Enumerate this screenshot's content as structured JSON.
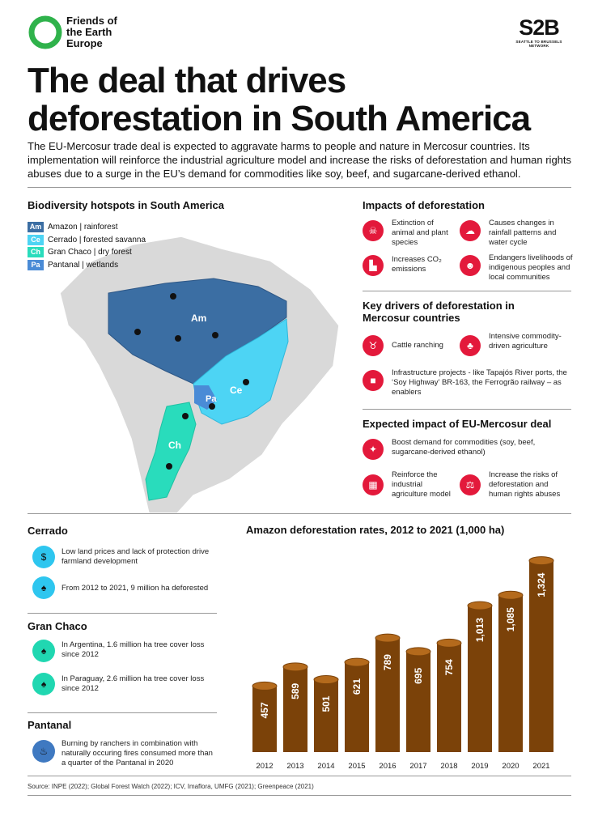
{
  "logos": {
    "foe_line1": "Friends of",
    "foe_line2": "the Earth",
    "foe_line3": "Europe",
    "s2b_mark": "S2B",
    "s2b_sub": "SEATTLE TO BRUSSELS NETWORK"
  },
  "title": {
    "line1": "The deal that drives",
    "line2": "deforestation in South America"
  },
  "intro": "The EU-Mercosur trade deal is expected to aggravate harms to people and nature in Mercosur countries. Its implementation will reinforce the industrial agriculture model and increase the risks of deforestation and human rights abuses due to a surge in the EU’s demand for commodities like soy, beef, and sugarcane-derived ethanol.",
  "map_section": {
    "title": "Biodiversity hotspots in South America",
    "legend": [
      {
        "code": "Am",
        "label": "Amazon | rainforest",
        "color": "#3b6ea3"
      },
      {
        "code": "Ce",
        "label": "Cerrado | forested savanna",
        "color": "#4dd4f4"
      },
      {
        "code": "Ch",
        "label": "Gran Chaco | dry forest",
        "color": "#29dcbc"
      },
      {
        "code": "Pa",
        "label": "Pantanal | wetlands",
        "color": "#4a8bd6"
      }
    ],
    "region_labels": {
      "am": "Am",
      "ce": "Ce",
      "pa": "Pa",
      "ch": "Ch"
    }
  },
  "impacts": {
    "title": "Impacts of deforestation",
    "items": [
      {
        "icon": "skull-icon",
        "glyph": "☠",
        "label": "Extinction of animal and plant species"
      },
      {
        "icon": "rain-cloud-icon",
        "glyph": "☁",
        "label": "Causes changes in rainfall patterns and water cycle"
      },
      {
        "icon": "factory-icon",
        "glyph": "▙",
        "label": "Increases CO₂ emissions"
      },
      {
        "icon": "people-icon",
        "glyph": "☻",
        "label": "Endangers livelihoods of indigenous peoples and local communities"
      }
    ]
  },
  "drivers": {
    "title": "Key drivers of deforestation in Mercosur countries",
    "items": [
      {
        "icon": "cow-icon",
        "glyph": "♉",
        "label": "Cattle ranching"
      },
      {
        "icon": "crops-icon",
        "glyph": "♣",
        "label": "Intensive commodity-driven agriculture"
      },
      {
        "icon": "truck-icon",
        "glyph": "■",
        "label": "Infrastructure projects - like Tapajós River ports, the ‘Soy Highway’ BR-163, the Ferrogrão railway – as enablers"
      }
    ]
  },
  "expected": {
    "title": "Expected impact of  EU-Mercosur deal",
    "items": [
      {
        "icon": "commodities-icon",
        "glyph": "✦",
        "label": "Boost demand for commodities (soy, beef, sugarcane-derived ethanol)"
      },
      {
        "icon": "industry-icon",
        "glyph": "▦",
        "label": "Reinforce the industrial agriculture model"
      },
      {
        "icon": "scales-icon",
        "glyph": "⚖",
        "label": "Increase the risks of deforestation and human rights abuses"
      }
    ]
  },
  "cerrado": {
    "title": "Cerrado",
    "items": [
      {
        "icon": "price-down-icon",
        "glyph": "$",
        "label": "Low land prices and lack of protection drive farmland development"
      },
      {
        "icon": "stump-icon",
        "glyph": "♠",
        "label": "From 2012 to 2021, 9 million ha deforested"
      }
    ]
  },
  "chaco": {
    "title": "Gran Chaco",
    "items": [
      {
        "icon": "stump-icon",
        "glyph": "♠",
        "label": "In Argentina, 1.6 million ha tree cover loss since 2012"
      },
      {
        "icon": "stump-icon",
        "glyph": "♠",
        "label": "In Paraguay, 2.6 million ha tree cover loss since 2012"
      }
    ]
  },
  "pantanal": {
    "title": "Pantanal",
    "items": [
      {
        "icon": "fire-tree-icon",
        "glyph": "♨",
        "label": "Burning by ranchers in combination with naturally occuring fires consumed more than a quarter of the Pantanal in 2020"
      }
    ]
  },
  "chart_data": {
    "type": "bar",
    "title": "Amazon deforestation rates, 2012 to 2021 (1,000 ha)",
    "categories": [
      "2012",
      "2013",
      "2014",
      "2015",
      "2016",
      "2017",
      "2018",
      "2019",
      "2020",
      "2021"
    ],
    "values": [
      457,
      589,
      501,
      621,
      789,
      695,
      754,
      1013,
      1085,
      1324
    ],
    "value_labels": [
      "457",
      "589",
      "501",
      "621",
      "789",
      "695",
      "754",
      "1,013",
      "1,085",
      "1,324"
    ],
    "bar_color": "#7b4209",
    "top_color": "#b46a1c",
    "xlabel": "",
    "ylabel": ""
  },
  "source": "Source: INPE (2022); Global Forest Watch (2022); ICV, Imaflora, UMFG (2021); Greenpeace (2021)"
}
